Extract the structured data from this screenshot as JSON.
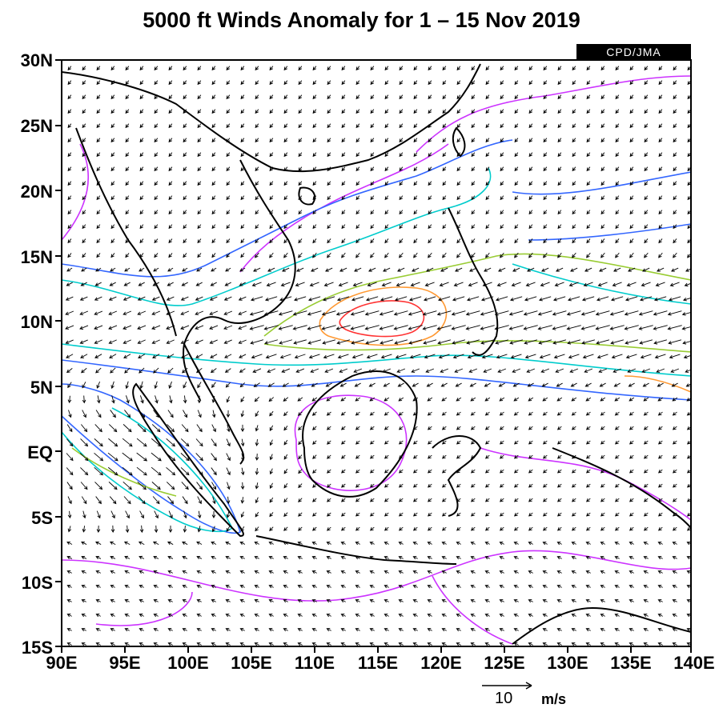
{
  "title": "5000 ft Winds Anomaly for 1 – 15 Nov 2019",
  "credit": "CPD/JMA",
  "axes": {
    "lat_labels": [
      "30N",
      "25N",
      "20N",
      "15N",
      "10N",
      "5N",
      "EQ",
      "5S",
      "10S",
      "15S"
    ],
    "lon_labels": [
      "90E",
      "95E",
      "100E",
      "105E",
      "110E",
      "115E",
      "120E",
      "125E",
      "130E",
      "135E",
      "140E"
    ],
    "lon_range": [
      90,
      140
    ],
    "lat_range": [
      -15,
      30
    ]
  },
  "scale": {
    "value": "10",
    "unit": "m/s"
  },
  "contour_colors": [
    "#cc33ff",
    "#3366ff",
    "#00cccc",
    "#99cc33",
    "#ff9933",
    "#ff3333"
  ],
  "vector_color": "#000000",
  "coastline_color": "#000000"
}
